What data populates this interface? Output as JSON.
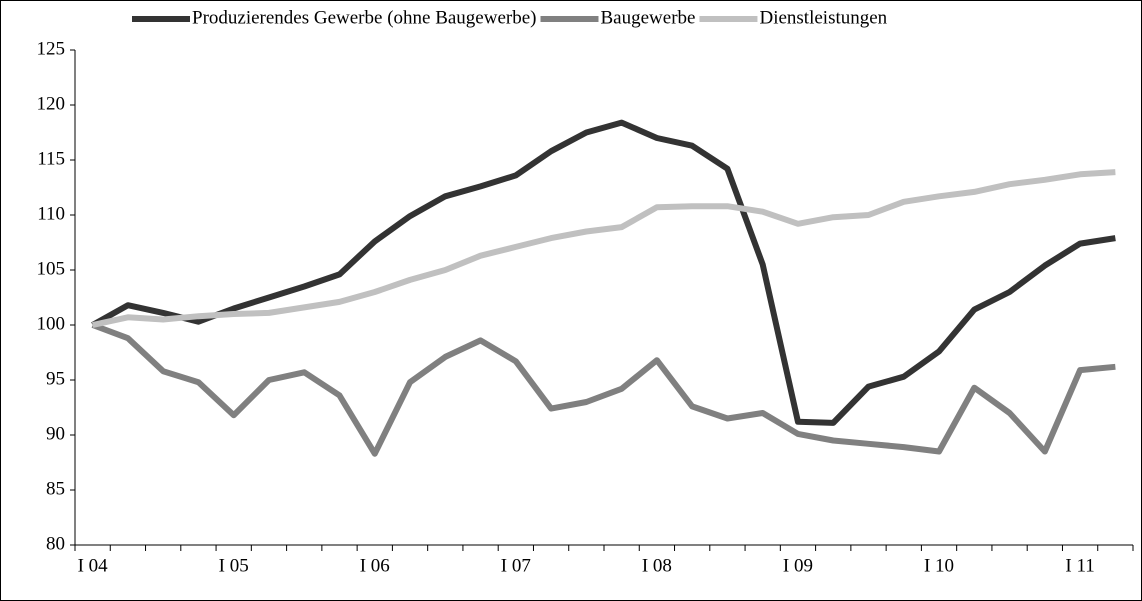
{
  "chart_data": {
    "type": "line",
    "categories": [
      "I 04",
      null,
      null,
      null,
      "I 05",
      null,
      null,
      null,
      "I 06",
      null,
      null,
      null,
      "I 07",
      null,
      null,
      null,
      "I 08",
      null,
      null,
      null,
      "I 09",
      null,
      null,
      null,
      "I 10",
      null,
      null,
      null,
      "I 11",
      null
    ],
    "series": [
      {
        "name": "Produzierendes Gewerbe (ohne Baugewerbe)",
        "color": "#333333",
        "values": [
          100,
          101.8,
          101.1,
          100.3,
          101.5,
          102.5,
          103.5,
          104.6,
          107.6,
          109.9,
          111.7,
          112.6,
          113.6,
          115.8,
          117.5,
          118.4,
          117.0,
          116.3,
          114.2,
          105.5,
          91.2,
          91.1,
          94.4,
          95.3,
          97.6,
          101.4,
          103.0,
          105.4,
          107.4,
          107.9
        ]
      },
      {
        "name": "Baugewerbe",
        "color": "#808080",
        "values": [
          100,
          98.8,
          95.8,
          94.8,
          91.8,
          95.0,
          95.7,
          93.6,
          88.3,
          94.8,
          97.1,
          98.6,
          96.7,
          92.4,
          93.0,
          94.2,
          96.8,
          92.6,
          91.5,
          92.0,
          90.1,
          89.5,
          89.2,
          88.9,
          88.5,
          94.3,
          92.0,
          88.5,
          95.9,
          96.2
        ]
      },
      {
        "name": "Dienstleistungen",
        "color": "#c0c0c0",
        "values": [
          100,
          100.7,
          100.5,
          100.8,
          101.0,
          101.1,
          101.6,
          102.1,
          103.0,
          104.1,
          105.0,
          106.3,
          107.1,
          107.9,
          108.5,
          108.9,
          110.7,
          110.8,
          110.8,
          110.3,
          109.2,
          109.8,
          110.0,
          111.2,
          111.7,
          112.1,
          112.8,
          113.2,
          113.7,
          113.9
        ]
      }
    ],
    "ylim": [
      80,
      125
    ],
    "yticks": [
      80,
      85,
      90,
      95,
      100,
      105,
      110,
      115,
      120,
      125
    ],
    "grid": false,
    "legend": "top"
  }
}
